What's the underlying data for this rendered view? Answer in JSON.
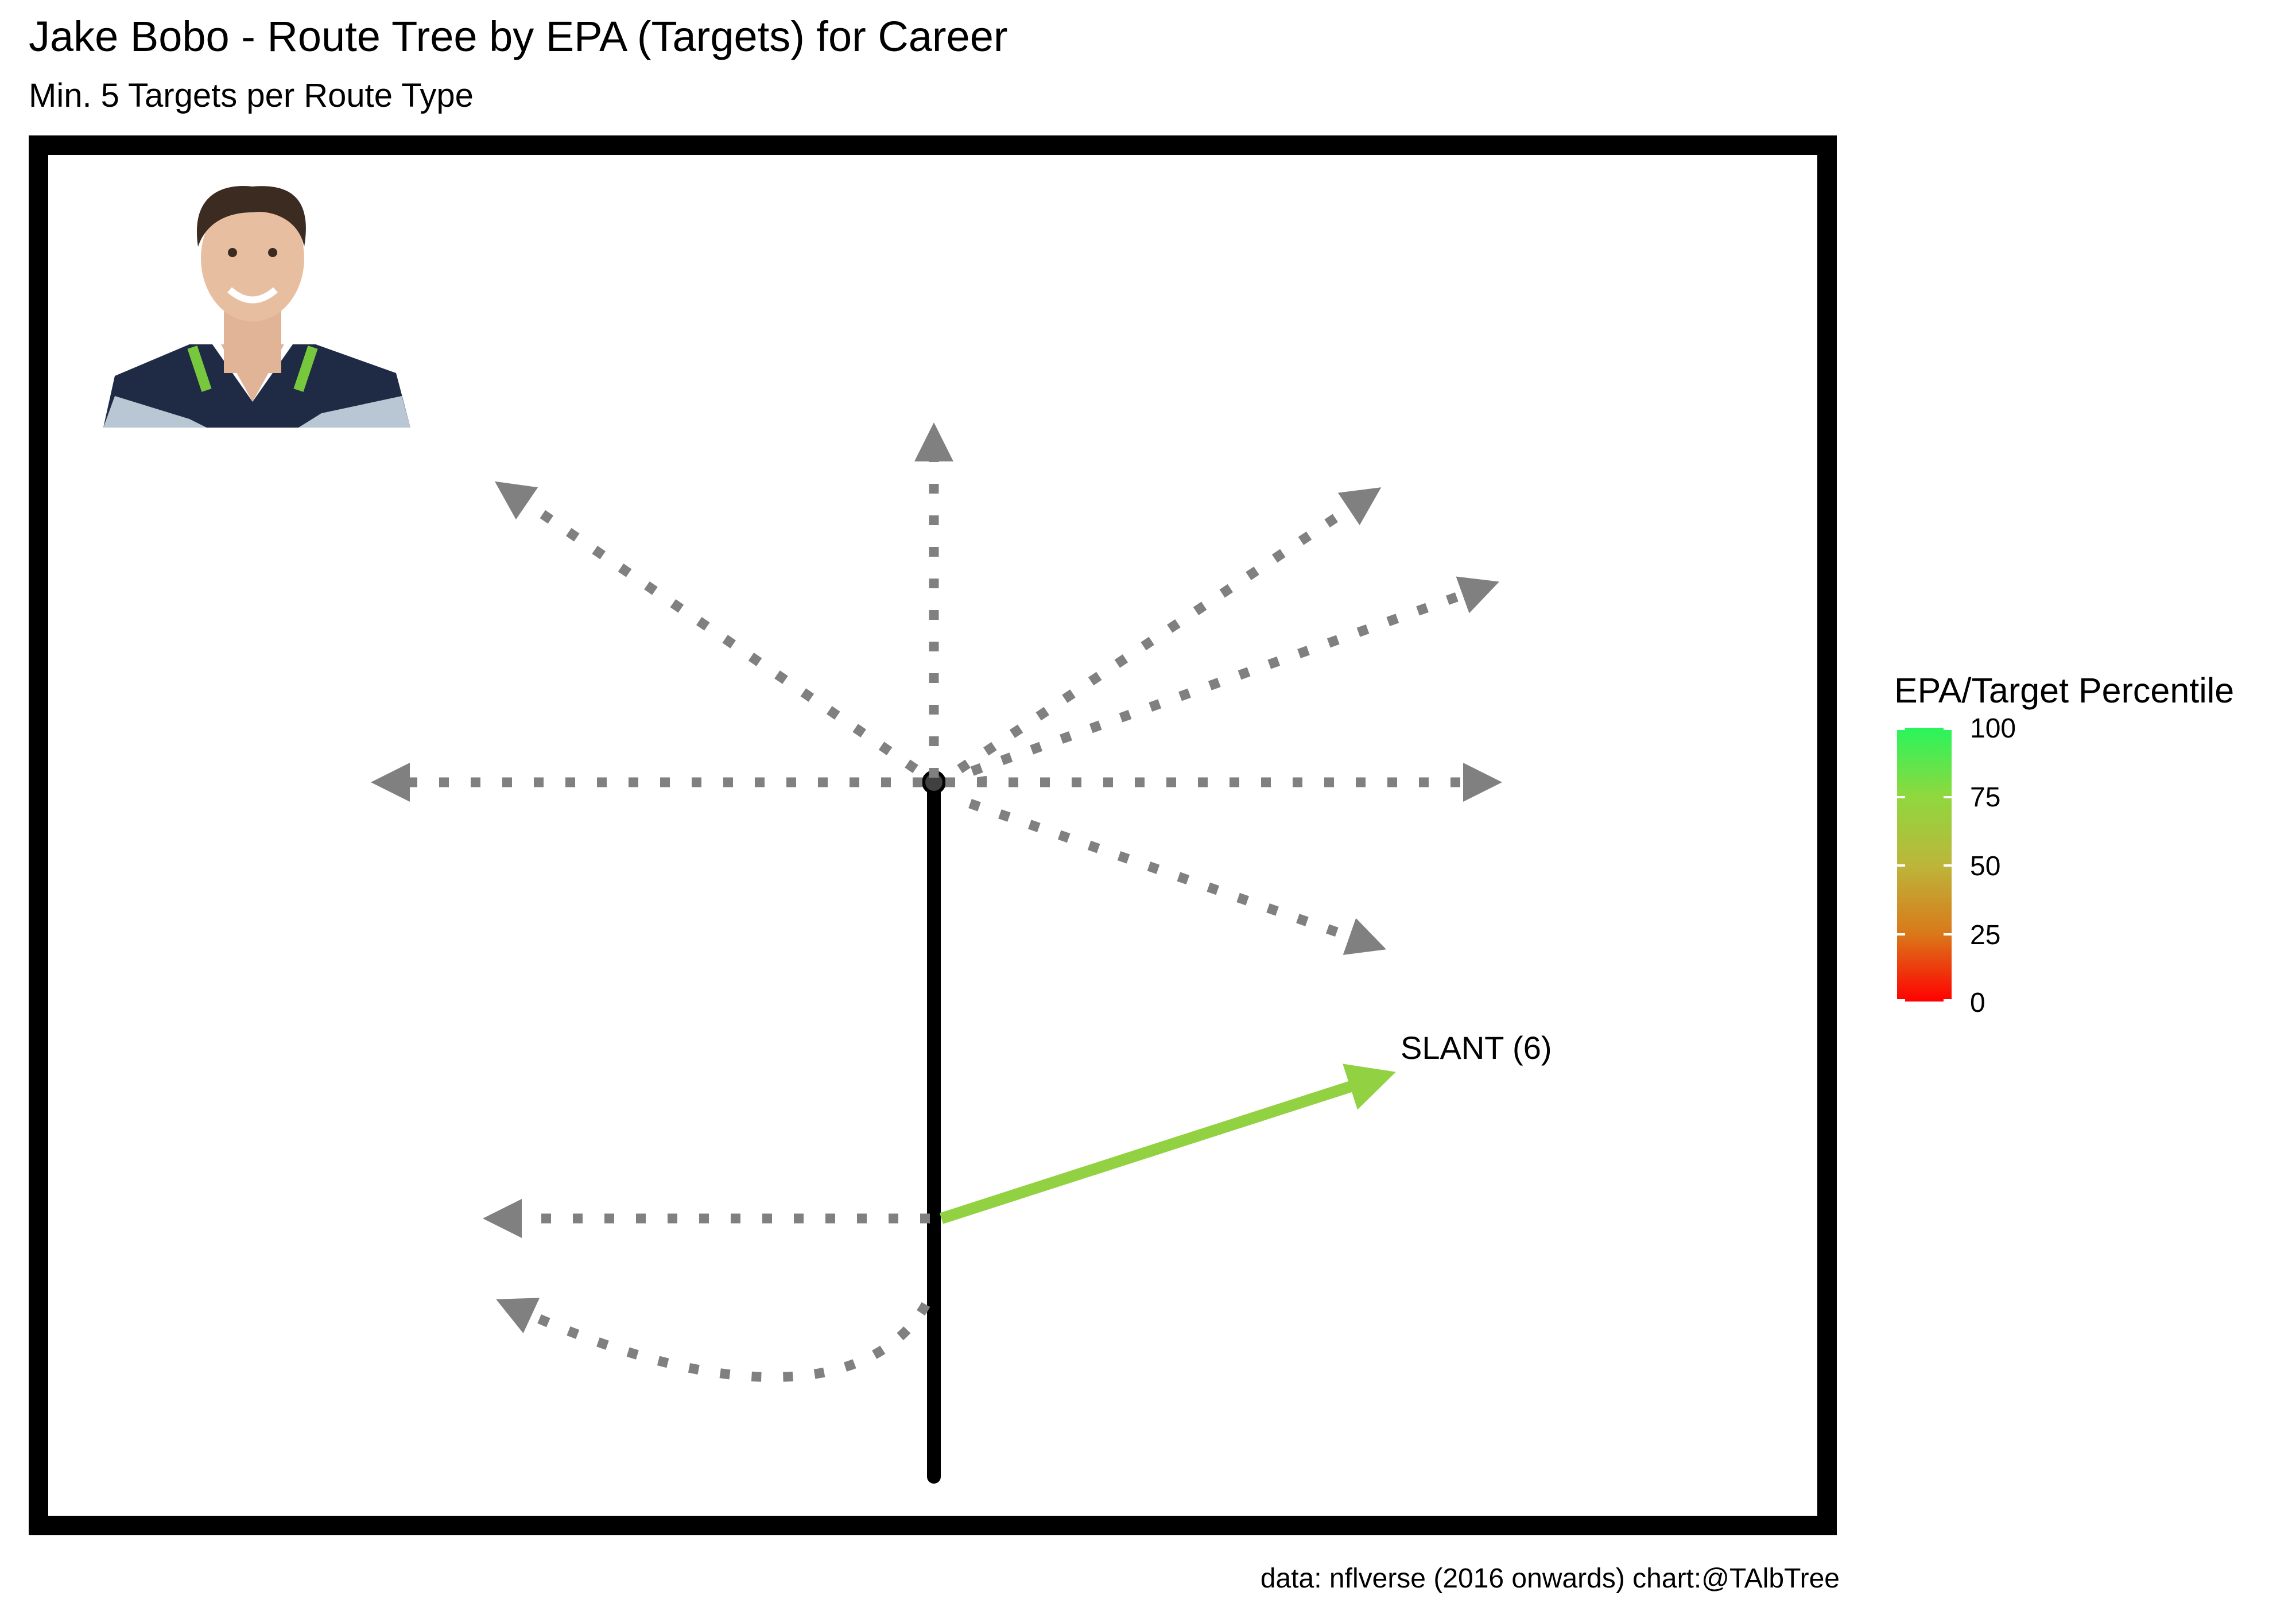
{
  "title": "Jake Bobo - Route Tree by EPA (Targets) for Career",
  "subtitle": "Min. 5 Targets per Route Type",
  "caption": "data: nflverse (2016 onwards)  chart:@TAlbTree",
  "legend": {
    "title": "EPA/Target Percentile",
    "ticks": [
      "100",
      "75",
      "50",
      "25",
      "0"
    ],
    "low_color": "#ff0000",
    "high_color": "#28f55c"
  },
  "chart_data": {
    "type": "route-tree",
    "colorscale": {
      "min": 0,
      "max": 100,
      "low": "#ff0000",
      "mid": "#bcb63b",
      "high": "#28f55c"
    },
    "highlighted_routes": [
      {
        "label": "SLANT (6)",
        "color": "#92d142"
      }
    ],
    "other_route_color": "#808080",
    "stem_color": "#000000"
  }
}
